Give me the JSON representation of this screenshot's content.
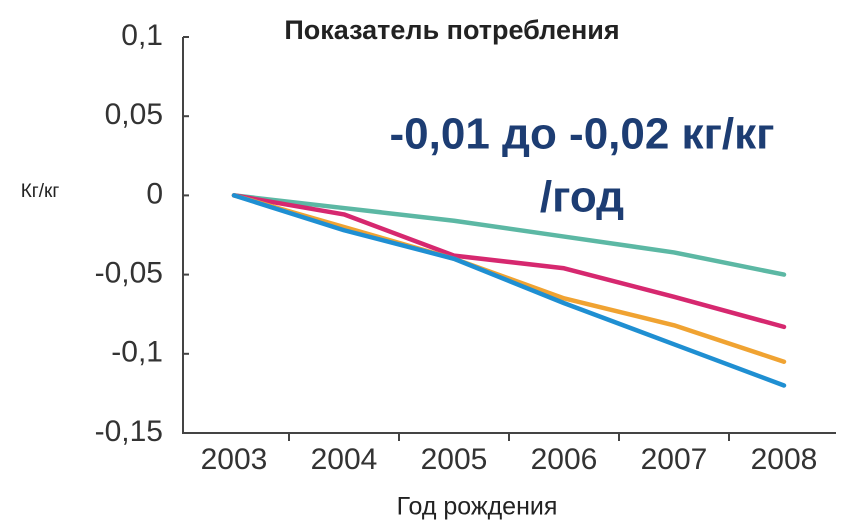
{
  "chart_data": {
    "type": "line",
    "title": "Показатель потребления",
    "annotation": [
      "-0,01 до -0,02 кг/кг",
      "/год"
    ],
    "y_label": "Кг/кг",
    "x_label": "Год рождения",
    "categories": [
      "2003",
      "2004",
      "2005",
      "2006",
      "2007",
      "2008"
    ],
    "series": [
      {
        "color": "#5cb8a4",
        "values": [
          0,
          -0.008,
          -0.016,
          -0.026,
          -0.036,
          -0.05
        ]
      },
      {
        "color": "#d6286f",
        "values": [
          0,
          -0.012,
          -0.038,
          -0.046,
          -0.064,
          -0.083
        ]
      },
      {
        "color": "#f0a332",
        "values": [
          0,
          -0.02,
          -0.04,
          -0.065,
          -0.082,
          -0.105
        ]
      },
      {
        "color": "#1f8fd2",
        "values": [
          0,
          -0.022,
          -0.04,
          -0.068,
          -0.094,
          -0.12
        ]
      }
    ],
    "ylim": [
      -0.15,
      0.1
    ],
    "yticks": [
      {
        "value": 0.1,
        "label": "0,1"
      },
      {
        "value": 0.05,
        "label": "0,05"
      },
      0,
      {
        "value": -0.05,
        "label": "-0,05"
      },
      {
        "value": -0.1,
        "label": "-0,1"
      },
      {
        "value": -0.15,
        "label": "-0,15"
      }
    ]
  }
}
